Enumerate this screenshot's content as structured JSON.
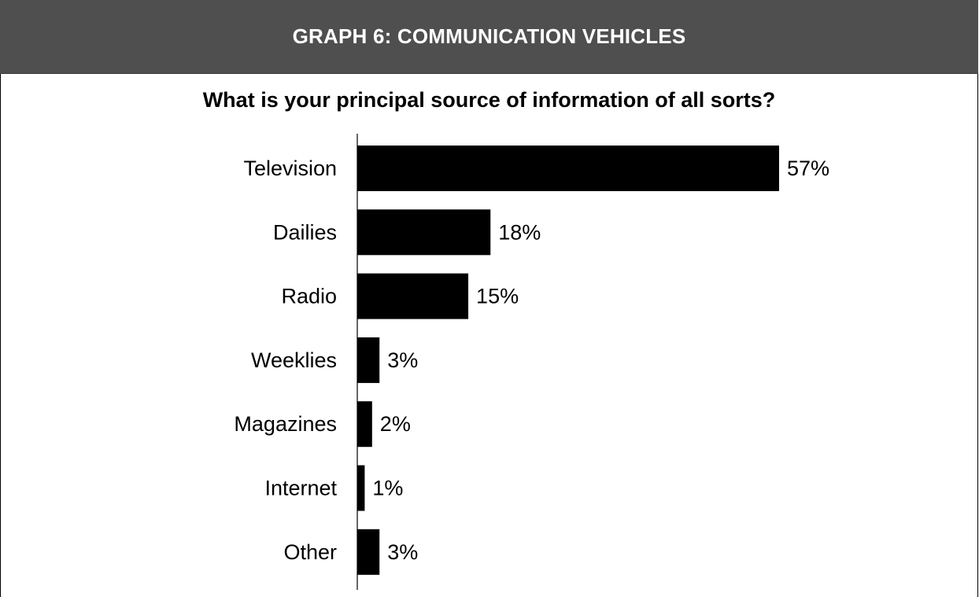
{
  "header": {
    "title": "GRAPH 6: COMMUNICATION VEHICLES"
  },
  "colors": {
    "header_background": "#4f4f4f",
    "header_text": "#ffffff",
    "bar": "#000000"
  },
  "chart_data": {
    "type": "bar",
    "orientation": "horizontal",
    "title": "What is your principal source of information of all sorts?",
    "categories": [
      "Television",
      "Dailies",
      "Radio",
      "Weeklies",
      "Magazines",
      "Internet",
      "Other"
    ],
    "values": [
      57,
      18,
      15,
      3,
      2,
      1,
      3
    ],
    "value_labels": [
      "57%",
      "18%",
      "15%",
      "3%",
      "2%",
      "1%",
      "3%"
    ],
    "unit": "%",
    "xlim": [
      0,
      57
    ],
    "grid": false,
    "legend": "none"
  }
}
